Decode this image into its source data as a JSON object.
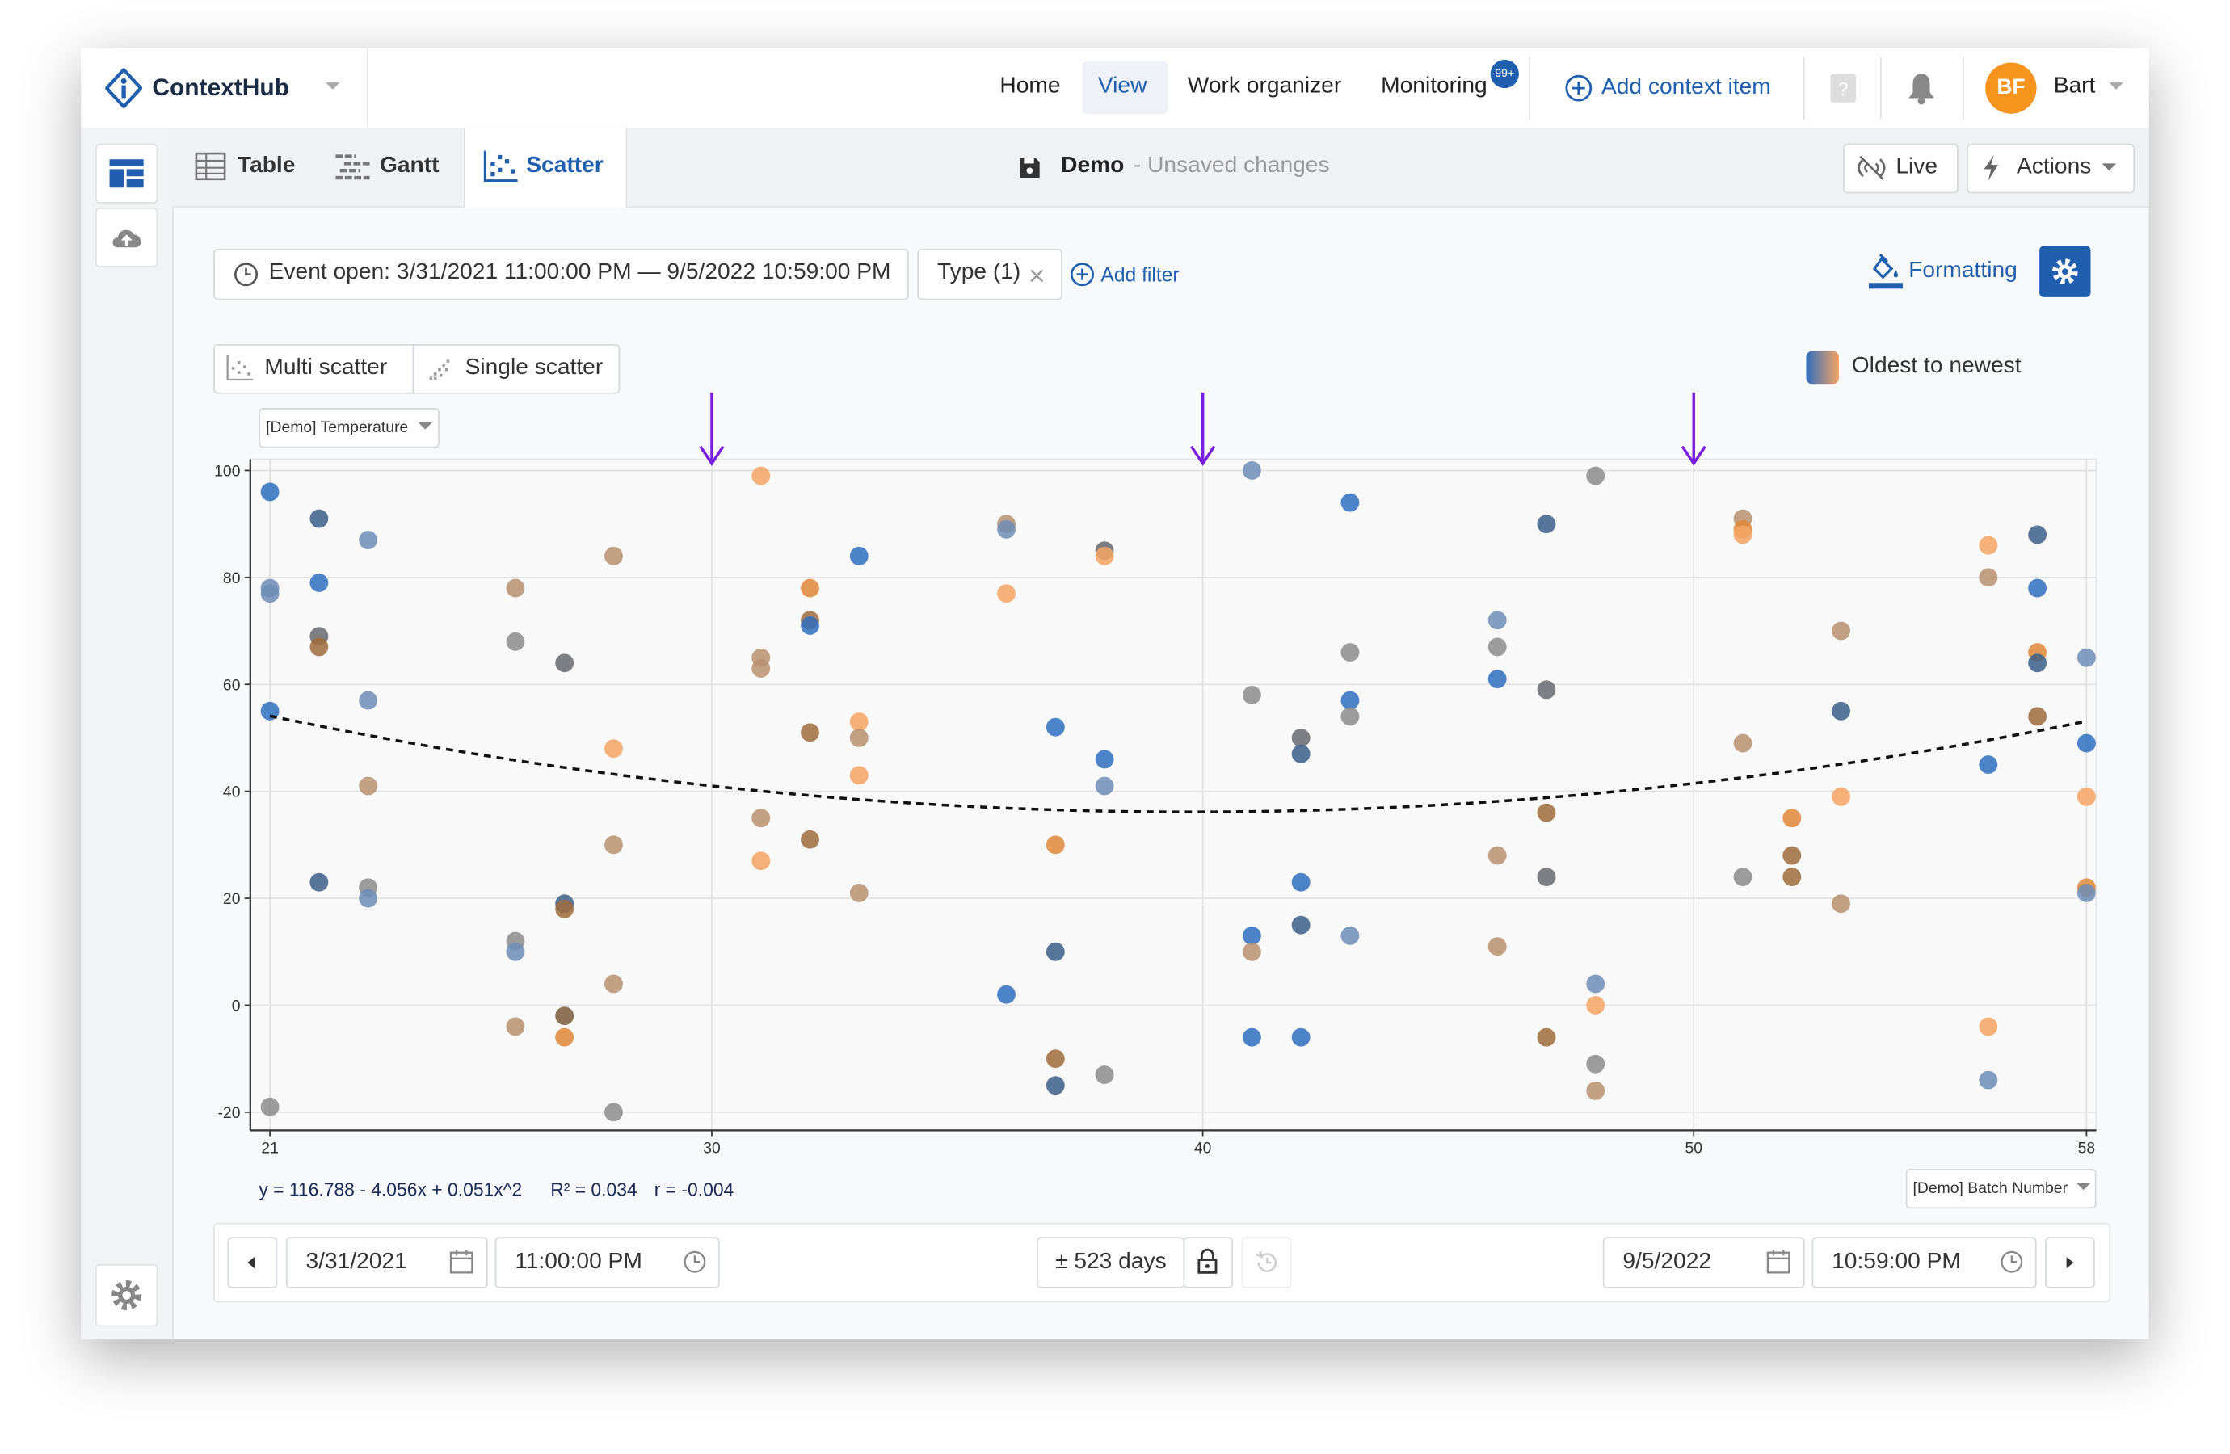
{
  "header": {
    "brand": "ContextHub",
    "nav": [
      "Home",
      "View",
      "Work organizer",
      "Monitoring"
    ],
    "badge": "99+",
    "add": "Add context item",
    "avatar": "BF",
    "user": "Bart"
  },
  "tabs": [
    "Table",
    "Gantt",
    "Scatter"
  ],
  "view": {
    "name": "Demo",
    "status": "- Unsaved changes"
  },
  "buttons": {
    "live": "Live",
    "actions": "Actions",
    "formatting": "Formatting",
    "add_filter": "Add filter"
  },
  "filters": [
    "Event open: 3/31/2021 11:00:00 PM — 9/5/2022 10:59:00 PM",
    "Type (1)"
  ],
  "modes": [
    "Multi scatter",
    "Single scatter"
  ],
  "color_legend": "Oldest to newest",
  "y_selector": "[Demo] Temperature",
  "x_selector": "[Demo] Batch Number",
  "chart_data": {
    "type": "scatter",
    "x": [
      21,
      21,
      21,
      21,
      21,
      22,
      22,
      22,
      22,
      22,
      23,
      23,
      23,
      23,
      23,
      26,
      26,
      26,
      26,
      26,
      27,
      27,
      27,
      27,
      27,
      28,
      28,
      28,
      28,
      28,
      31,
      31,
      31,
      31,
      31,
      32,
      32,
      32,
      32,
      32,
      33,
      33,
      33,
      33,
      33,
      36,
      36,
      36,
      36,
      37,
      37,
      37,
      37,
      37,
      38,
      38,
      38,
      38,
      38,
      41,
      41,
      41,
      41,
      41,
      42,
      42,
      42,
      42,
      42,
      43,
      43,
      43,
      43,
      43,
      46,
      46,
      46,
      46,
      46,
      47,
      47,
      47,
      47,
      47,
      48,
      48,
      48,
      48,
      48,
      51,
      51,
      51,
      51,
      51,
      52,
      52,
      52,
      53,
      53,
      53,
      53,
      56,
      56,
      56,
      56,
      56,
      57,
      57,
      57,
      57,
      57,
      58,
      58,
      58,
      58,
      58
    ],
    "values": [
      96,
      78,
      77,
      55,
      -19,
      91,
      79,
      69,
      67,
      23,
      87,
      57,
      41,
      22,
      20,
      78,
      68,
      12,
      10,
      -4,
      64,
      19,
      18,
      -2,
      -6,
      84,
      48,
      30,
      4,
      -20,
      99,
      65,
      63,
      35,
      27,
      78,
      72,
      71,
      51,
      31,
      84,
      53,
      50,
      43,
      21,
      90,
      89,
      77,
      2,
      52,
      30,
      10,
      -10,
      -15,
      85,
      84,
      46,
      41,
      -13,
      100,
      58,
      13,
      10,
      -6,
      50,
      47,
      23,
      15,
      -6,
      94,
      66,
      57,
      54,
      13,
      72,
      67,
      61,
      28,
      11,
      90,
      59,
      36,
      24,
      -6,
      99,
      4,
      0,
      -11,
      -16,
      91,
      89,
      88,
      49,
      24,
      35,
      28,
      24,
      70,
      55,
      39,
      19,
      86,
      80,
      45,
      -4,
      -14,
      88,
      78,
      66,
      64,
      54,
      65,
      49,
      39,
      22,
      21
    ],
    "colors": [
      "#2f6ebf",
      "#6d8db5",
      "#6d8db5",
      "#2f6ebf",
      "#8c8c8c",
      "#3b5f88",
      "#2f6ebf",
      "#666a6e",
      "#a06c3c",
      "#3b5f88",
      "#6d8db5",
      "#6d8db5",
      "#b89070",
      "#8c8c8c",
      "#6d8db5",
      "#b89070",
      "#8c8c8c",
      "#8c8c8c",
      "#6d8db5",
      "#b89070",
      "#666a6e",
      "#3b5f88",
      "#a06c3c",
      "#7a5a3a",
      "#e0873a",
      "#b89070",
      "#f5a463",
      "#b89070",
      "#b89070",
      "#8c8c8c",
      "#f5a463",
      "#b89070",
      "#b89070",
      "#b89070",
      "#f5a463",
      "#e0873a",
      "#a06c3c",
      "#2f6ebf",
      "#a06c3c",
      "#a06c3c",
      "#2f6ebf",
      "#f5a463",
      "#b89070",
      "#f5a463",
      "#b89070",
      "#b89070",
      "#6d8db5",
      "#f5a463",
      "#2f6ebf",
      "#2f6ebf",
      "#e0873a",
      "#3b5f88",
      "#a06c3c",
      "#3b5f88",
      "#666a6e",
      "#f5a463",
      "#2f6ebf",
      "#6d8db5",
      "#8c8c8c",
      "#6d8db5",
      "#8c8c8c",
      "#2f6ebf",
      "#b89070",
      "#2f6ebf",
      "#666a6e",
      "#3b5f88",
      "#2f6ebf",
      "#3b5f88",
      "#2f6ebf",
      "#2f6ebf",
      "#8c8c8c",
      "#2f6ebf",
      "#8c8c8c",
      "#6d8db5",
      "#6d8db5",
      "#8c8c8c",
      "#2f6ebf",
      "#b89070",
      "#b89070",
      "#3b5f88",
      "#666a6e",
      "#a06c3c",
      "#666a6e",
      "#a06c3c",
      "#8c8c8c",
      "#6d8db5",
      "#f5a463",
      "#8c8c8c",
      "#b89070",
      "#b89070",
      "#e0873a",
      "#f5a463",
      "#b89070",
      "#8c8c8c",
      "#e0873a",
      "#a06c3c",
      "#a06c3c",
      "#b89070",
      "#3b5f88",
      "#f5a463",
      "#b89070",
      "#f5a463",
      "#b89070",
      "#2f6ebf",
      "#f5a463",
      "#6d8db5",
      "#3b5f88",
      "#2f6ebf",
      "#e0873a",
      "#3b5f88",
      "#a06c3c",
      "#6d8db5",
      "#2f6ebf",
      "#f5a463",
      "#e0873a",
      "#6d8db5"
    ],
    "xlim": [
      20.6,
      58.2
    ],
    "ylim": [
      -23.4,
      102.1
    ],
    "xticks": [
      21,
      30,
      40,
      50,
      58
    ],
    "yticks": [
      -20,
      0,
      20,
      40,
      60,
      80,
      100
    ],
    "grid": true,
    "markers_x": [
      30,
      40,
      50
    ],
    "trendline": {
      "coefficients": [
        116.788,
        -4.056,
        0.051
      ],
      "equation": "y = 116.788 - 4.056x + 0.051x^2",
      "r2": "R² = 0.034",
      "r": "r = -0.004"
    }
  },
  "range": {
    "start_date": "3/31/2021",
    "start_time": "11:00:00 PM",
    "span": "± 523 days",
    "end_date": "9/5/2022",
    "end_time": "10:59:00 PM"
  }
}
